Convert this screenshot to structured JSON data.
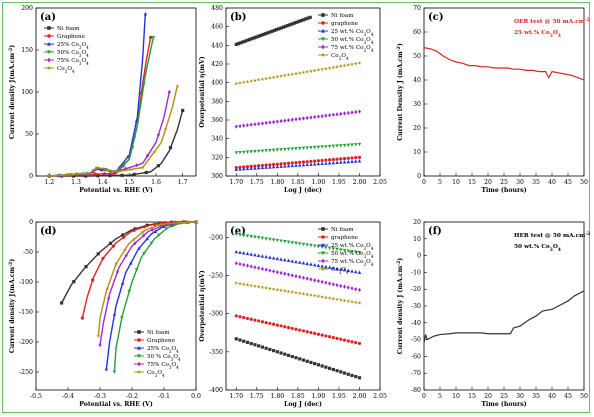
{
  "colors": {
    "ni": "#333333",
    "graphene": "#dd2222",
    "c25": "#2233dd",
    "c50": "#22a033",
    "c75": "#a02ad8",
    "co3o4": "#b09010",
    "oer_note": "#dd2222"
  },
  "chart_data": [
    {
      "id": "a",
      "panel_label": "(a)",
      "type": "line",
      "xlabel": "Potential vs. RHE (V)",
      "ylabel": "Current density J(mA.cm-2)",
      "xlim": [
        1.15,
        1.75
      ],
      "ylim": [
        0,
        200
      ],
      "xticks": [
        "1.2",
        "1.3",
        "1.4",
        "1.5",
        "1.6",
        "1.7"
      ],
      "yticks": [
        "0",
        "50",
        "100",
        "150",
        "200"
      ],
      "legend_position": "top-left",
      "series": [
        {
          "name": "Ni foam",
          "color_key": "ni",
          "marker": "square",
          "x": [
            1.2,
            1.35,
            1.5,
            1.58,
            1.62,
            1.65,
            1.68,
            1.7
          ],
          "y": [
            0,
            0,
            1,
            5,
            15,
            30,
            55,
            78
          ]
        },
        {
          "name": "Graphene",
          "color_key": "graphene",
          "marker": "circle",
          "x": [
            1.2,
            1.35,
            1.45,
            1.5,
            1.53,
            1.55,
            1.565,
            1.58
          ],
          "y": [
            0,
            2,
            3,
            20,
            60,
            110,
            140,
            165
          ]
        },
        {
          "name": "25% Co3O4",
          "color_key": "c25",
          "marker": "triangle",
          "x": [
            1.2,
            1.35,
            1.38,
            1.45,
            1.5,
            1.53,
            1.55,
            1.56
          ],
          "y": [
            0,
            3,
            8,
            5,
            25,
            70,
            140,
            193
          ]
        },
        {
          "name": "50% Co3O4",
          "color_key": "c50",
          "marker": "triangle-down",
          "x": [
            1.2,
            1.35,
            1.38,
            1.45,
            1.5,
            1.53,
            1.56,
            1.59
          ],
          "y": [
            0,
            3,
            10,
            5,
            20,
            60,
            120,
            165
          ]
        },
        {
          "name": "75% Co3O4",
          "color_key": "c75",
          "marker": "diamond",
          "x": [
            1.2,
            1.35,
            1.38,
            1.45,
            1.55,
            1.6,
            1.63,
            1.65
          ],
          "y": [
            0,
            3,
            10,
            5,
            15,
            40,
            70,
            100
          ]
        },
        {
          "name": "Co3O4",
          "color_key": "co3o4",
          "marker": "star",
          "x": [
            1.2,
            1.35,
            1.38,
            1.45,
            1.55,
            1.62,
            1.66,
            1.68
          ],
          "y": [
            0,
            3,
            10,
            5,
            10,
            40,
            80,
            107
          ]
        }
      ]
    },
    {
      "id": "b",
      "panel_label": "(b)",
      "type": "scatter",
      "xlabel": "Log J (dec)",
      "ylabel": "Overpotential η(mV)",
      "xlim": [
        1.675,
        2.05
      ],
      "ylim": [
        300,
        480
      ],
      "xticks": [
        "1.70",
        "1.75",
        "1.80",
        "1.85",
        "1.90",
        "1.95",
        "2.00",
        "2.05"
      ],
      "yticks": [
        "300",
        "320",
        "340",
        "360",
        "380",
        "400",
        "420",
        "440",
        "460",
        "480"
      ],
      "legend_position": "top-right",
      "series": [
        {
          "name": "Ni foam",
          "color_key": "ni",
          "marker": "square",
          "x": [
            1.7,
            1.88
          ],
          "y": [
            441,
            470
          ]
        },
        {
          "name": "graphene",
          "color_key": "graphene",
          "marker": "circle",
          "x": [
            1.7,
            2.0
          ],
          "y": [
            309,
            320
          ]
        },
        {
          "name": "25 wt.% Co3O4",
          "color_key": "c25",
          "marker": "triangle",
          "x": [
            1.7,
            2.0
          ],
          "y": [
            307,
            316
          ]
        },
        {
          "name": "50 wt.% Co3O4",
          "color_key": "c50",
          "marker": "triangle-down",
          "x": [
            1.7,
            2.0
          ],
          "y": [
            325,
            334
          ]
        },
        {
          "name": "75 wt.% Co3O4",
          "color_key": "c75",
          "marker": "diamond",
          "x": [
            1.7,
            2.0
          ],
          "y": [
            353,
            369
          ]
        },
        {
          "name": "Co3O4",
          "color_key": "co3o4",
          "marker": "star",
          "x": [
            1.7,
            2.0
          ],
          "y": [
            399,
            421
          ]
        }
      ]
    },
    {
      "id": "c",
      "panel_label": "(c)",
      "type": "line",
      "xlabel": "Time (hours)",
      "ylabel": "Current Density J (mA.cm-2)",
      "xlim": [
        0,
        50
      ],
      "ylim": [
        0,
        70
      ],
      "xticks": [
        "0",
        "5",
        "10",
        "15",
        "20",
        "25",
        "30",
        "35",
        "40",
        "45",
        "50"
      ],
      "yticks": [
        "0",
        "10",
        "20",
        "30",
        "40",
        "50",
        "60",
        "70"
      ],
      "annotations": [
        "OER test @ 50 mA.cm-2",
        "25 wt.% Co3O4"
      ],
      "series": [
        {
          "color_key": "oer_note",
          "x": [
            0,
            2,
            4,
            6,
            8,
            10,
            12,
            14,
            16,
            18,
            20,
            22,
            24,
            26,
            28,
            30,
            32,
            34,
            36,
            38,
            39,
            40,
            42,
            44,
            46,
            48,
            50
          ],
          "y": [
            53.5,
            53,
            52,
            50,
            48.5,
            47.5,
            47,
            46,
            46,
            45.5,
            45.5,
            45,
            45,
            45,
            44.5,
            44.5,
            44,
            44,
            43.5,
            43.5,
            41,
            43.5,
            43,
            42.5,
            42,
            41,
            40
          ]
        }
      ]
    },
    {
      "id": "d",
      "panel_label": "(d)",
      "type": "line",
      "xlabel": "Potential vs. RHE (V)",
      "ylabel": "Current density J(mA.cm-2)",
      "xlim": [
        -0.5,
        0.0
      ],
      "ylim": [
        -280,
        0
      ],
      "xticks": [
        "-0.5",
        "-0.4",
        "-0.3",
        "-0.2",
        "-0.1",
        "0.0"
      ],
      "yticks": [
        "0",
        "-50",
        "-100",
        "-150",
        "-200",
        "-250"
      ],
      "legend_position": "bottom-right",
      "series": [
        {
          "name": "Ni foam",
          "color_key": "ni",
          "marker": "square",
          "x": [
            -0.42,
            -0.39,
            -0.35,
            -0.3,
            -0.25,
            -0.2,
            -0.15,
            -0.1,
            -0.05,
            0.0
          ],
          "y": [
            -135,
            -105,
            -78,
            -50,
            -28,
            -13,
            -5,
            -1,
            0,
            0
          ]
        },
        {
          "name": "Graphene",
          "color_key": "graphene",
          "marker": "circle",
          "x": [
            -0.355,
            -0.34,
            -0.32,
            -0.29,
            -0.25,
            -0.2,
            -0.15,
            -0.1,
            -0.05,
            0.0
          ],
          "y": [
            -160,
            -125,
            -92,
            -60,
            -35,
            -15,
            -6,
            -1,
            0,
            0
          ]
        },
        {
          "name": "25% Co3O4",
          "color_key": "c25",
          "marker": "triangle",
          "x": [
            -0.28,
            -0.27,
            -0.25,
            -0.22,
            -0.18,
            -0.14,
            -0.1,
            -0.05,
            0.0
          ],
          "y": [
            -245,
            -200,
            -140,
            -85,
            -45,
            -20,
            -7,
            -1,
            0
          ]
        },
        {
          "name": "50 % Co3O4",
          "color_key": "c50",
          "marker": "triangle-down",
          "x": [
            -0.255,
            -0.25,
            -0.23,
            -0.2,
            -0.17,
            -0.13,
            -0.09,
            -0.05,
            0.0
          ],
          "y": [
            -250,
            -210,
            -155,
            -100,
            -58,
            -28,
            -10,
            -2,
            0
          ]
        },
        {
          "name": "75% Co3O4",
          "color_key": "c75",
          "marker": "diamond",
          "x": [
            -0.3,
            -0.29,
            -0.27,
            -0.24,
            -0.2,
            -0.15,
            -0.1,
            -0.05,
            0.0
          ],
          "y": [
            -205,
            -170,
            -120,
            -75,
            -40,
            -16,
            -5,
            -1,
            0
          ]
        },
        {
          "name": "Co3O4",
          "color_key": "co3o4",
          "marker": "star",
          "x": [
            -0.305,
            -0.3,
            -0.28,
            -0.25,
            -0.21,
            -0.16,
            -0.11,
            -0.05,
            0.0
          ],
          "y": [
            -190,
            -160,
            -115,
            -70,
            -36,
            -14,
            -4,
            -1,
            0
          ]
        }
      ]
    },
    {
      "id": "e",
      "panel_label": "(e)",
      "type": "scatter",
      "xlabel": "Log J (dec)",
      "ylabel": "Overpotential η(mV)",
      "xlim": [
        1.675,
        2.05
      ],
      "ylim": [
        -400,
        -180
      ],
      "xticks": [
        "1.70",
        "1.75",
        "1.80",
        "1.85",
        "1.90",
        "1.95",
        "2.00",
        "2.05"
      ],
      "yticks": [
        "-200",
        "-250",
        "-300",
        "-350",
        "-400"
      ],
      "legend_position": "top-right",
      "series": [
        {
          "name": "Ni foam",
          "color_key": "ni",
          "marker": "square",
          "x": [
            1.7,
            2.0
          ],
          "y": [
            -333,
            -384
          ]
        },
        {
          "name": "graphene",
          "color_key": "graphene",
          "marker": "circle",
          "x": [
            1.7,
            2.0
          ],
          "y": [
            -303,
            -339
          ]
        },
        {
          "name": "25 wt.% Co3O4",
          "color_key": "c25",
          "marker": "triangle",
          "x": [
            1.7,
            2.0
          ],
          "y": [
            -219,
            -246
          ]
        },
        {
          "name": "50 wt.% Co3O4",
          "color_key": "c50",
          "marker": "triangle-down",
          "x": [
            1.7,
            2.0
          ],
          "y": [
            -196,
            -220
          ]
        },
        {
          "name": "75 wt.% Co3O4",
          "color_key": "c75",
          "marker": "diamond",
          "x": [
            1.7,
            2.0
          ],
          "y": [
            -234,
            -269
          ]
        },
        {
          "name": "Co3O4",
          "color_key": "co3o4",
          "marker": "star",
          "x": [
            1.7,
            2.0
          ],
          "y": [
            -260,
            -286
          ]
        }
      ]
    },
    {
      "id": "f",
      "panel_label": "(f)",
      "type": "line",
      "xlabel": "Time (hours)",
      "ylabel": "Current density J (mA.cm-2)",
      "xlim": [
        0,
        50
      ],
      "ylim": [
        -80,
        20
      ],
      "xticks": [
        "0",
        "5",
        "10",
        "15",
        "20",
        "25",
        "30",
        "35",
        "40",
        "45",
        "50"
      ],
      "yticks": [
        "20",
        "10",
        "0",
        "-10",
        "-20",
        "-30",
        "-40",
        "-50",
        "-60",
        "-70",
        "-80"
      ],
      "annotations": [
        "HER test @ 50 mA.cm-2",
        "50 wt.% Co3O4"
      ],
      "series": [
        {
          "color_key": "ni",
          "x": [
            0,
            0.5,
            1,
            3,
            5,
            8,
            10,
            12,
            15,
            18,
            20,
            22,
            25,
            27,
            28,
            30,
            33,
            35,
            37,
            40,
            42,
            45,
            47,
            49,
            50
          ],
          "y": [
            -52,
            -47,
            -50,
            -48,
            -47,
            -46.5,
            -46,
            -46,
            -46,
            -46,
            -46.5,
            -46.5,
            -46.5,
            -46.5,
            -43,
            -42,
            -38,
            -36,
            -33,
            -32,
            -30,
            -27,
            -24,
            -22,
            -21
          ]
        }
      ]
    }
  ]
}
